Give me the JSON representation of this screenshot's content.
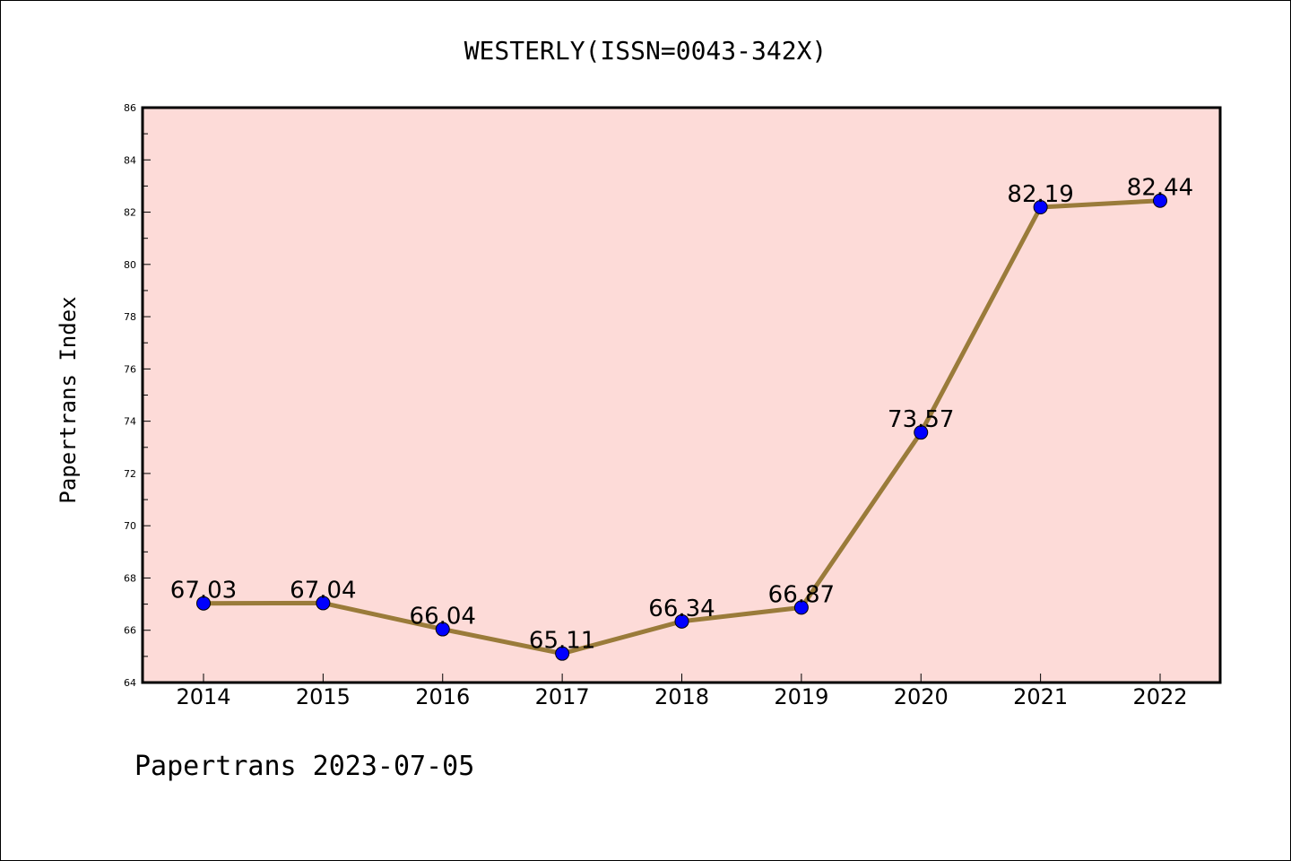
{
  "chart_data": {
    "type": "line",
    "title": "WESTERLY(ISSN=0043-342X)",
    "ylabel": "Papertrans Index",
    "xlabel": "",
    "categories": [
      "2014",
      "2015",
      "2016",
      "2017",
      "2018",
      "2019",
      "2020",
      "2021",
      "2022"
    ],
    "values": [
      67.03,
      67.04,
      66.04,
      65.11,
      66.34,
      66.87,
      73.57,
      82.19,
      82.44
    ],
    "data_labels": [
      "67.03",
      "67.04",
      "66.04",
      "65.11",
      "66.34",
      "66.87",
      "73.57",
      "82.19",
      "82.44"
    ],
    "ylim": [
      64,
      86
    ],
    "yticks": [
      "64",
      "66",
      "68",
      "70",
      "72",
      "74",
      "76",
      "78",
      "80",
      "82",
      "84",
      "86"
    ],
    "footer": "Papertrans 2023-07-05",
    "colors": {
      "plot_bg": "#fddbd8",
      "line": "#9a7b3a",
      "marker": "#0000ff",
      "axis": "#000000"
    }
  }
}
